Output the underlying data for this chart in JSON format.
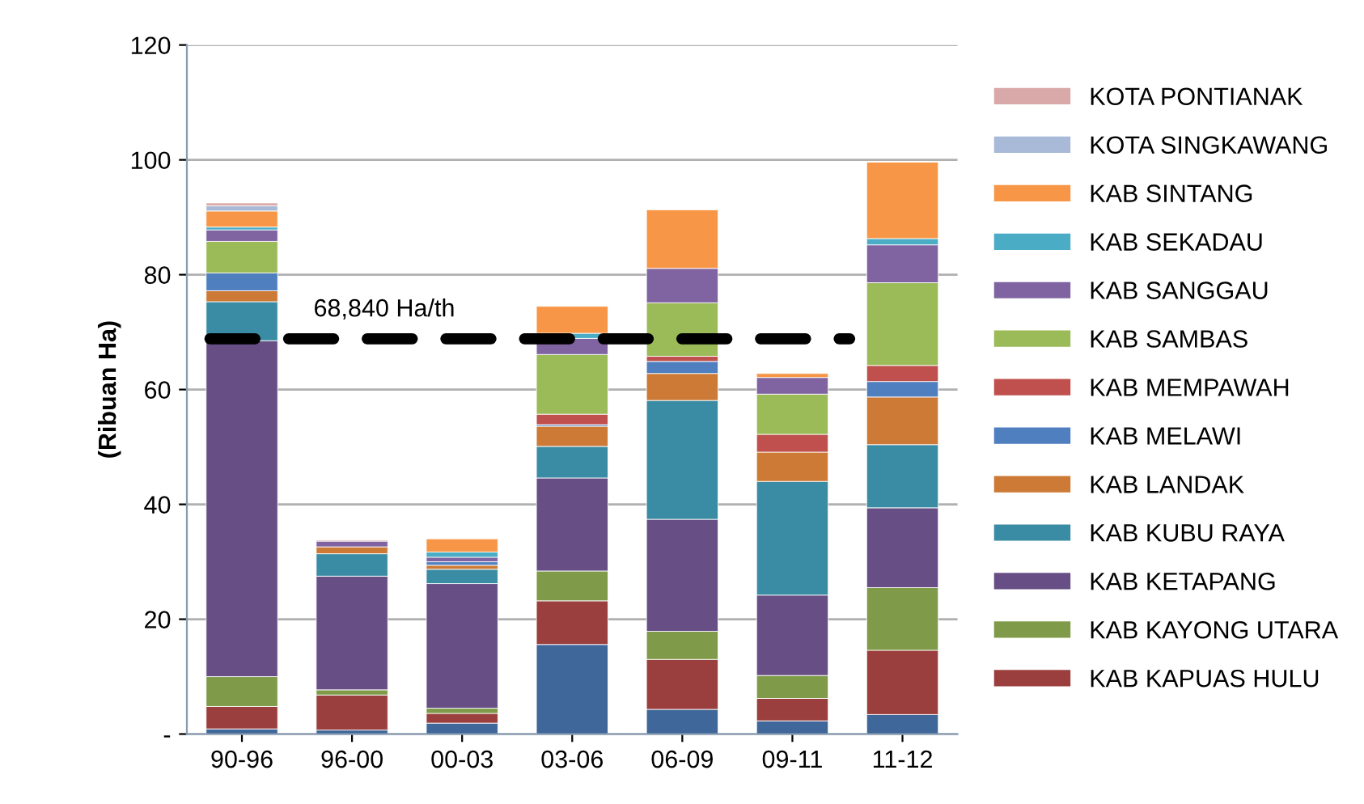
{
  "chart_data": {
    "type": "bar",
    "stacked": true,
    "ylabel": "(Ribuan Ha)",
    "categories": [
      "90-96",
      "96-00",
      "00-03",
      "03-06",
      "06-09",
      "09-11",
      "11-12"
    ],
    "ylim": [
      0,
      120
    ],
    "yticks": [
      {
        "value": 0,
        "label": "-"
      },
      20,
      40,
      60,
      80,
      100,
      120
    ],
    "grid": "y",
    "legend": "right",
    "ref_lines": [
      {
        "axis": "y",
        "value": 68.84,
        "label": "68,840 Ha/th",
        "color": "#000000",
        "line_style": "dashed"
      }
    ],
    "series": [
      {
        "color": "#3f6799",
        "values": [
          0.9,
          0.7,
          1.9,
          15.6,
          4.3,
          2.3,
          3.4
        ]
      },
      {
        "name": "KAB KAPUAS HULU",
        "color": "#9b3f3e",
        "values": [
          3.9,
          6.1,
          1.7,
          7.6,
          8.7,
          3.9,
          11.2
        ]
      },
      {
        "name": "KAB KAYONG UTARA",
        "color": "#7f9a48",
        "values": [
          5.2,
          0.9,
          0.9,
          5.2,
          4.9,
          4.0,
          10.9
        ]
      },
      {
        "name": "KAB KETAPANG",
        "color": "#674f86",
        "values": [
          58.5,
          19.8,
          21.7,
          16.2,
          19.5,
          14.0,
          13.9
        ]
      },
      {
        "name": "KAB KUBU RAYA",
        "color": "#3a8ca4",
        "values": [
          6.8,
          3.9,
          2.5,
          5.5,
          20.7,
          19.8,
          11.0
        ]
      },
      {
        "name": "KAB LANDAK",
        "color": "#cc7a36",
        "values": [
          1.9,
          1.2,
          0.7,
          3.5,
          4.7,
          5.1,
          8.3
        ]
      },
      {
        "name": "KAB MELAWI",
        "color": "#4f7fbf",
        "values": [
          3.1,
          null,
          0.6,
          0.3,
          2.1,
          null,
          2.7
        ]
      },
      {
        "name": "KAB MEMPAWAH",
        "color": "#c0504d",
        "values": [
          null,
          null,
          null,
          1.8,
          0.9,
          3.1,
          2.8
        ]
      },
      {
        "name": "KAB SAMBAS",
        "color": "#9bbb59",
        "values": [
          5.5,
          null,
          null,
          10.4,
          9.3,
          7.0,
          14.4
        ]
      },
      {
        "name": "KAB SANGGAU",
        "color": "#8064a2",
        "values": [
          2.0,
          1.0,
          0.8,
          2.8,
          6.0,
          2.9,
          6.6
        ]
      },
      {
        "name": "KAB SEKADAU",
        "color": "#4bacc6",
        "values": [
          0.5,
          null,
          0.9,
          0.9,
          null,
          null,
          1.1
        ]
      },
      {
        "name": "KAB SINTANG",
        "color": "#f79646",
        "values": [
          2.8,
          null,
          2.3,
          4.7,
          10.2,
          0.7,
          13.3
        ]
      },
      {
        "name": "KOTA SINGKAWANG",
        "color": "#a9bad8",
        "values": [
          0.9,
          null,
          null,
          null,
          null,
          null,
          null
        ]
      },
      {
        "name": "KOTA PONTIANAK",
        "color": "#d9a8a8",
        "values": [
          0.5,
          0.2,
          null,
          null,
          null,
          null,
          null
        ]
      }
    ]
  }
}
